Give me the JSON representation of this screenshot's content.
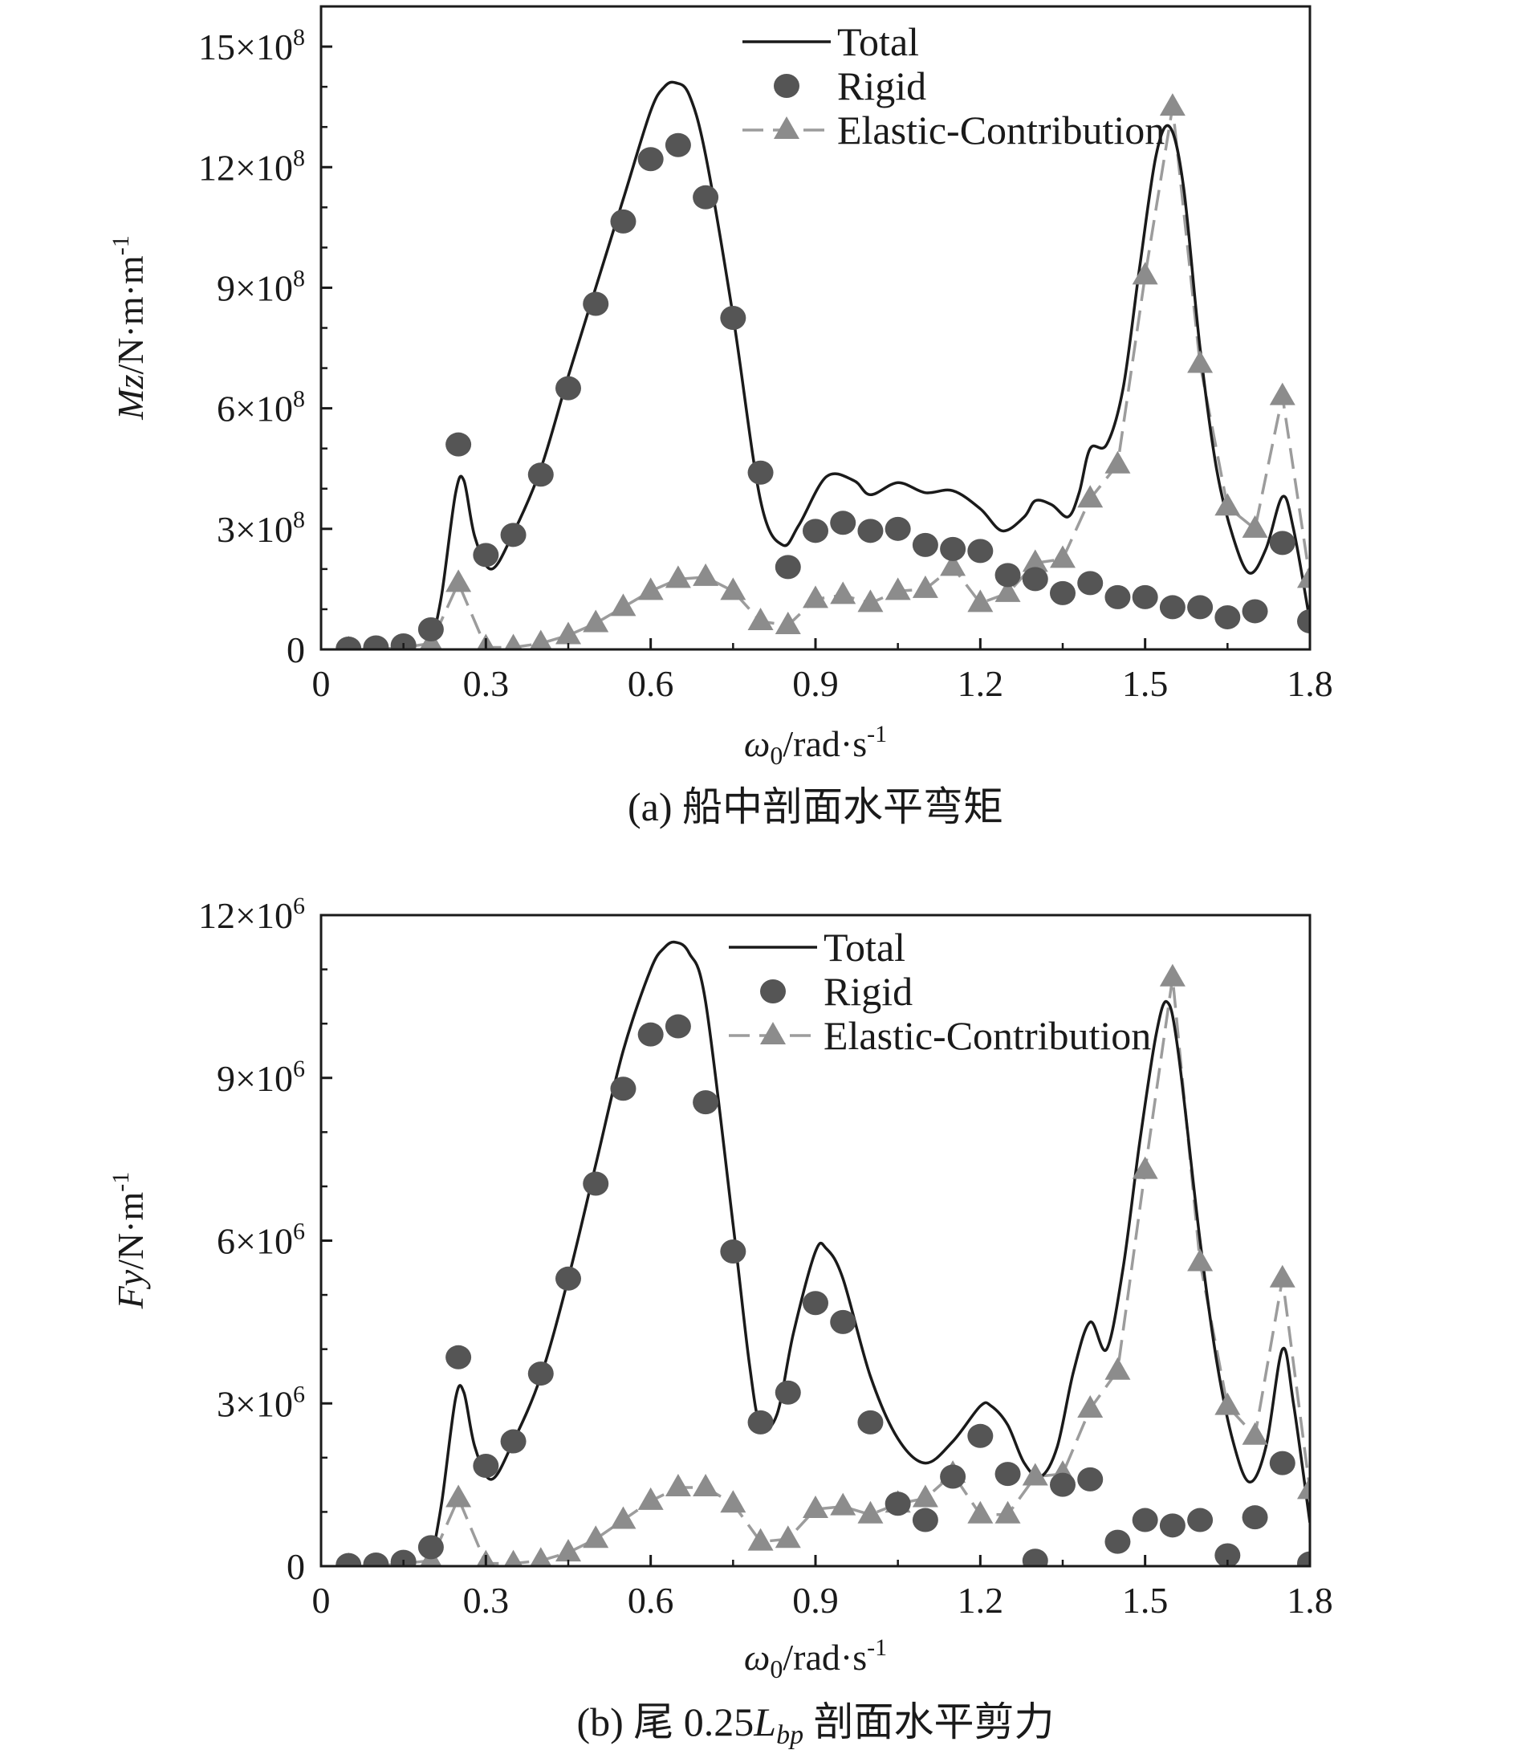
{
  "chart_data": [
    {
      "type": "line",
      "panel": "a",
      "caption": "(a) 船中剖面水平弯矩",
      "xlabel": "ω0/rad·s-1",
      "xlabel_parts": {
        "omega": "ω",
        "sub": "0",
        "rest": "/rad·s",
        "sup": "-1"
      },
      "ylabel_parts": {
        "sym": "Mz",
        "rest": "/N·m·m",
        "sup": "-1"
      },
      "xlim": [
        0,
        1.8
      ],
      "ylim": [
        0,
        16
      ],
      "y_unit_note": "values in units of 10^8",
      "xticks": [
        0,
        0.3,
        0.6,
        0.9,
        1.2,
        1.5,
        1.8
      ],
      "xtick_labels": [
        "0",
        "0.3",
        "0.6",
        "0.9",
        "1.2",
        "1.5",
        "1.8"
      ],
      "yticks": [
        0,
        3,
        6,
        9,
        12,
        15
      ],
      "ytick_labels": [
        {
          "base": "0",
          "exp": ""
        },
        {
          "base": "3×10",
          "exp": "8"
        },
        {
          "base": "6×10",
          "exp": "8"
        },
        {
          "base": "9×10",
          "exp": "8"
        },
        {
          "base": "12×10",
          "exp": "8"
        },
        {
          "base": "15×10",
          "exp": "8"
        }
      ],
      "legend": [
        "Total",
        "Rigid",
        "Elastic-Contribution"
      ],
      "series": [
        {
          "name": "Total",
          "style": "line",
          "x": [
            0.2,
            0.22,
            0.245,
            0.26,
            0.28,
            0.31,
            0.35,
            0.4,
            0.45,
            0.5,
            0.55,
            0.6,
            0.625,
            0.645,
            0.67,
            0.7,
            0.75,
            0.8,
            0.84,
            0.87,
            0.92,
            0.97,
            1.0,
            1.05,
            1.1,
            1.15,
            1.2,
            1.24,
            1.28,
            1.3,
            1.33,
            1.36,
            1.38,
            1.4,
            1.43,
            1.46,
            1.49,
            1.52,
            1.545,
            1.57,
            1.6,
            1.63,
            1.66,
            1.69,
            1.72,
            1.75,
            1.77,
            1.8
          ],
          "y": [
            0.05,
            1.4,
            3.9,
            4.2,
            2.8,
            2.0,
            2.9,
            4.5,
            6.8,
            9.0,
            11.2,
            13.4,
            14.0,
            14.1,
            13.8,
            12.3,
            8.3,
            3.7,
            2.6,
            3.1,
            4.3,
            4.2,
            3.85,
            4.15,
            3.9,
            3.95,
            3.5,
            2.95,
            3.3,
            3.7,
            3.6,
            3.3,
            3.9,
            5.0,
            5.1,
            6.5,
            9.5,
            12.3,
            13.0,
            11.5,
            7.5,
            4.5,
            2.8,
            1.9,
            2.5,
            3.8,
            3.0,
            0.7
          ]
        },
        {
          "name": "Rigid",
          "style": "circle",
          "x": [
            0.05,
            0.1,
            0.15,
            0.2,
            0.25,
            0.3,
            0.35,
            0.4,
            0.45,
            0.5,
            0.55,
            0.6,
            0.65,
            0.7,
            0.75,
            0.8,
            0.85,
            0.9,
            0.95,
            1.0,
            1.05,
            1.1,
            1.15,
            1.2,
            1.25,
            1.3,
            1.35,
            1.4,
            1.45,
            1.5,
            1.55,
            1.6,
            1.65,
            1.7,
            1.75,
            1.8
          ],
          "y": [
            0.02,
            0.05,
            0.1,
            0.5,
            5.1,
            2.35,
            2.85,
            4.35,
            6.5,
            8.6,
            10.65,
            12.2,
            12.55,
            11.25,
            8.25,
            4.4,
            2.05,
            2.95,
            3.15,
            2.95,
            3.0,
            2.6,
            2.5,
            2.45,
            1.85,
            1.75,
            1.4,
            1.65,
            1.3,
            1.3,
            1.05,
            1.05,
            0.8,
            0.95,
            2.65,
            0.7
          ]
        },
        {
          "name": "Elastic-Contribution",
          "style": "dashed-triangle",
          "x": [
            0.05,
            0.1,
            0.15,
            0.2,
            0.25,
            0.3,
            0.35,
            0.4,
            0.45,
            0.5,
            0.55,
            0.6,
            0.65,
            0.7,
            0.75,
            0.8,
            0.85,
            0.9,
            0.95,
            1.0,
            1.05,
            1.1,
            1.15,
            1.2,
            1.25,
            1.3,
            1.35,
            1.4,
            1.45,
            1.5,
            1.55,
            1.6,
            1.65,
            1.7,
            1.75,
            1.8
          ],
          "y": [
            0.0,
            0.0,
            0.05,
            0.15,
            1.65,
            0.05,
            0.05,
            0.15,
            0.35,
            0.65,
            1.05,
            1.45,
            1.75,
            1.8,
            1.45,
            0.7,
            0.6,
            1.25,
            1.35,
            1.15,
            1.45,
            1.5,
            2.05,
            1.15,
            1.4,
            2.15,
            2.25,
            3.75,
            4.6,
            9.3,
            13.5,
            7.1,
            3.55,
            3.0,
            6.3,
            1.75
          ]
        }
      ]
    },
    {
      "type": "line",
      "panel": "b",
      "caption_parts": {
        "pre": "(b) 尾 0.25",
        "L": "L",
        "sub": "bp",
        "post": " 剖面水平剪力"
      },
      "xlabel": "ω0/rad·s-1",
      "xlabel_parts": {
        "omega": "ω",
        "sub": "0",
        "rest": "/rad·s",
        "sup": "-1"
      },
      "ylabel_parts": {
        "sym": "Fy",
        "rest": "/N·m",
        "sup": "-1"
      },
      "xlim": [
        0,
        1.8
      ],
      "ylim": [
        0,
        12
      ],
      "y_unit_note": "values in units of 10^6",
      "xticks": [
        0,
        0.3,
        0.6,
        0.9,
        1.2,
        1.5,
        1.8
      ],
      "xtick_labels": [
        "0",
        "0.3",
        "0.6",
        "0.9",
        "1.2",
        "1.5",
        "1.8"
      ],
      "yticks": [
        0,
        3,
        6,
        9,
        12
      ],
      "ytick_labels": [
        {
          "base": "0",
          "exp": ""
        },
        {
          "base": "3×10",
          "exp": "6"
        },
        {
          "base": "6×10",
          "exp": "6"
        },
        {
          "base": "9×10",
          "exp": "6"
        },
        {
          "base": "12×10",
          "exp": "6"
        }
      ],
      "legend": [
        "Total",
        "Rigid",
        "Elastic-Contribution"
      ],
      "series": [
        {
          "name": "Total",
          "style": "line",
          "x": [
            0.2,
            0.22,
            0.245,
            0.26,
            0.28,
            0.31,
            0.35,
            0.4,
            0.45,
            0.5,
            0.55,
            0.6,
            0.625,
            0.645,
            0.67,
            0.7,
            0.75,
            0.78,
            0.8,
            0.83,
            0.86,
            0.9,
            0.92,
            0.95,
            1.0,
            1.05,
            1.1,
            1.15,
            1.2,
            1.22,
            1.25,
            1.28,
            1.31,
            1.34,
            1.37,
            1.4,
            1.43,
            1.46,
            1.49,
            1.52,
            1.54,
            1.56,
            1.6,
            1.63,
            1.66,
            1.69,
            1.72,
            1.75,
            1.77,
            1.8
          ],
          "y": [
            0.05,
            1.2,
            3.1,
            3.2,
            2.2,
            1.6,
            2.3,
            3.5,
            5.3,
            7.4,
            9.5,
            11.0,
            11.4,
            11.5,
            11.3,
            10.4,
            6.3,
            3.7,
            2.6,
            2.8,
            4.3,
            5.8,
            5.85,
            5.3,
            3.5,
            2.35,
            1.9,
            2.3,
            2.95,
            2.95,
            2.6,
            1.9,
            1.65,
            2.2,
            3.6,
            4.5,
            4.0,
            5.5,
            7.8,
            9.8,
            10.4,
            9.5,
            6.0,
            3.8,
            2.3,
            1.55,
            2.2,
            4.0,
            3.0,
            0.8
          ]
        },
        {
          "name": "Rigid",
          "style": "circle",
          "x": [
            0.05,
            0.1,
            0.15,
            0.2,
            0.25,
            0.3,
            0.35,
            0.4,
            0.45,
            0.5,
            0.55,
            0.6,
            0.65,
            0.7,
            0.75,
            0.8,
            0.85,
            0.9,
            0.95,
            1.0,
            1.05,
            1.1,
            1.15,
            1.2,
            1.25,
            1.3,
            1.35,
            1.4,
            1.45,
            1.5,
            1.55,
            1.6,
            1.65,
            1.7,
            1.75,
            1.8
          ],
          "y": [
            0.02,
            0.03,
            0.08,
            0.35,
            3.85,
            1.85,
            2.3,
            3.55,
            5.3,
            7.05,
            8.8,
            9.8,
            9.95,
            8.55,
            5.8,
            2.65,
            3.2,
            4.85,
            4.5,
            2.65,
            1.15,
            0.85,
            1.65,
            2.4,
            1.7,
            0.1,
            1.5,
            1.6,
            0.45,
            0.85,
            0.75,
            0.85,
            0.2,
            0.9,
            1.9,
            0.05
          ]
        },
        {
          "name": "Elastic-Contribution",
          "style": "dashed-triangle",
          "x": [
            0.05,
            0.1,
            0.15,
            0.2,
            0.25,
            0.3,
            0.35,
            0.4,
            0.45,
            0.5,
            0.55,
            0.6,
            0.65,
            0.7,
            0.75,
            0.8,
            0.85,
            0.9,
            0.95,
            1.0,
            1.05,
            1.1,
            1.15,
            1.2,
            1.25,
            1.3,
            1.35,
            1.4,
            1.45,
            1.5,
            1.55,
            1.6,
            1.65,
            1.7,
            1.75,
            1.8
          ],
          "y": [
            0.0,
            0.0,
            0.05,
            0.1,
            1.25,
            0.05,
            0.05,
            0.1,
            0.25,
            0.5,
            0.85,
            1.2,
            1.45,
            1.45,
            1.15,
            0.45,
            0.5,
            1.05,
            1.1,
            0.95,
            1.15,
            1.25,
            1.7,
            0.95,
            0.95,
            1.65,
            1.7,
            2.9,
            3.6,
            7.3,
            10.85,
            5.6,
            2.95,
            2.4,
            5.3,
            1.4
          ]
        }
      ]
    }
  ]
}
